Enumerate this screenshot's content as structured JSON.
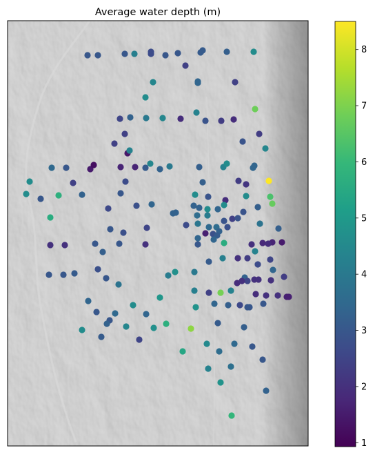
{
  "chart_data": {
    "type": "scatter",
    "title": "Average water depth (m)",
    "xlabel": "",
    "ylabel": "",
    "grid": false,
    "background": "grayscale hillshade relief map",
    "colorbar": {
      "colormap": "viridis",
      "range": [
        0.93,
        8.5
      ],
      "ticks": [
        1,
        2,
        3,
        4,
        5,
        6,
        7,
        8
      ],
      "tick_labels": [
        "1",
        "2",
        "3",
        "4",
        "5",
        "6",
        "7",
        "8"
      ],
      "colors": [
        "#440154",
        "#482878",
        "#3e4989",
        "#31688e",
        "#26828e",
        "#1f9e89",
        "#35b779",
        "#6ece58",
        "#b5de2b",
        "#fde725"
      ]
    },
    "series": [
      {
        "values": [
          [
            127,
            80,
            3.0
          ],
          [
            142,
            80,
            3.0
          ],
          [
            181,
            78,
            3.0
          ],
          [
            195,
            78,
            4.2
          ],
          [
            219,
            75,
            2.7
          ],
          [
            219,
            78,
            2.7
          ],
          [
            240,
            80,
            3.0
          ],
          [
            258,
            77,
            3.0
          ],
          [
            291,
            76,
            3.1
          ],
          [
            294,
            73,
            3.1
          ],
          [
            329,
            75,
            3.2
          ],
          [
            368,
            75,
            4.6
          ],
          [
            269,
            95,
            2.4
          ],
          [
            222,
            119,
            4.4
          ],
          [
            287,
            118,
            3.4
          ],
          [
            287,
            120,
            3.4
          ],
          [
            341,
            119,
            2.4
          ],
          [
            211,
            141,
            4.6
          ],
          [
            370,
            158,
            6.8
          ],
          [
            285,
            163,
            4.3
          ],
          [
            174,
            172,
            2.5
          ],
          [
            189,
            170,
            3.3
          ],
          [
            212,
            171,
            4.0
          ],
          [
            236,
            171,
            4.4
          ],
          [
            262,
            172,
            1.9
          ],
          [
            298,
            175,
            2.9
          ],
          [
            321,
            175,
            2.3
          ],
          [
            339,
            173,
            1.9
          ],
          [
            181,
            194,
            2.4
          ],
          [
            166,
            208,
            2.4
          ],
          [
            185,
            222,
            1.4
          ],
          [
            188,
            218,
            4.3
          ],
          [
            352,
            205,
            2.9
          ],
          [
            376,
            194,
            2.3
          ],
          [
            385,
            215,
            4.4
          ],
          [
            75,
            243,
            3.5
          ],
          [
            96,
            243,
            3.0
          ],
          [
            131,
            245,
            1.5
          ],
          [
            136,
            239,
            1.2
          ],
          [
            175,
            242,
            1.7
          ],
          [
            196,
            242,
            1.7
          ],
          [
            218,
            237,
            4.4
          ],
          [
            232,
            245,
            3.3
          ],
          [
            211,
            243,
            3.1
          ],
          [
            246,
            241,
            4.0
          ],
          [
            289,
            242,
            3.2
          ],
          [
            324,
            242,
            4.3
          ],
          [
            329,
            237,
            4.6
          ],
          [
            367,
            243,
            3.4
          ],
          [
            369,
            240,
            3.4
          ],
          [
            43,
            263,
            4.6
          ],
          [
            106,
            265,
            2.4
          ],
          [
            182,
            263,
            2.7
          ],
          [
            294,
            264,
            3.2
          ],
          [
            346,
            262,
            2.3
          ],
          [
            357,
            267,
            2.1
          ],
          [
            390,
            262,
            8.5
          ],
          [
            38,
            281,
            4.6
          ],
          [
            59,
            288,
            3.0
          ],
          [
            85,
            283,
            5.7
          ],
          [
            119,
            282,
            3.3
          ],
          [
            175,
            280,
            3.0
          ],
          [
            283,
            282,
            4.6
          ],
          [
            302,
            285,
            2.9
          ],
          [
            327,
            290,
            1.9
          ],
          [
            357,
            284,
            4.6
          ],
          [
            392,
            285,
            6.3
          ],
          [
            395,
            295,
            6.7
          ],
          [
            157,
            302,
            2.6
          ],
          [
            198,
            298,
            2.8
          ],
          [
            220,
            296,
            3.4
          ],
          [
            251,
            309,
            3.3
          ],
          [
            255,
            308,
            3.3
          ],
          [
            281,
            298,
            3.3
          ],
          [
            289,
            301,
            3.3
          ],
          [
            301,
            303,
            4.6
          ],
          [
            316,
            303,
            3.4
          ],
          [
            325,
            297,
            4.6
          ],
          [
            353,
            307,
            2.9
          ],
          [
            374,
            300,
            3.2
          ],
          [
            73,
            315,
            5.6
          ],
          [
            301,
            312,
            4.1
          ],
          [
            286,
            312,
            3.6
          ],
          [
            287,
            324,
            3.9
          ],
          [
            325,
            320,
            2.9
          ],
          [
            337,
            317,
            2.4
          ],
          [
            345,
            316,
            2.9
          ],
          [
            377,
            324,
            3.8
          ],
          [
            160,
            332,
            3.0
          ],
          [
            179,
            337,
            2.8
          ],
          [
            213,
            330,
            2.5
          ],
          [
            270,
            326,
            2.7
          ],
          [
            298,
            338,
            1.6
          ],
          [
            303,
            329,
            3.5
          ],
          [
            314,
            329,
            3.6
          ],
          [
            318,
            335,
            3.3
          ],
          [
            330,
            329,
            2.8
          ],
          [
            309,
            339,
            2.8
          ],
          [
            315,
            341,
            3.1
          ],
          [
            404,
            331,
            3.2
          ],
          [
            73,
            355,
            2.0
          ],
          [
            94,
            355,
            2.0
          ],
          [
            138,
            353,
            3.0
          ],
          [
            173,
            353,
            3.0
          ],
          [
            211,
            354,
            2.0
          ],
          [
            287,
            345,
            3.4
          ],
          [
            287,
            354,
            3.0
          ],
          [
            325,
            352,
            5.6
          ],
          [
            310,
            347,
            3.4
          ],
          [
            365,
            354,
            2.0
          ],
          [
            381,
            352,
            1.8
          ],
          [
            395,
            351,
            1.7
          ],
          [
            409,
            351,
            1.5
          ],
          [
            389,
            353,
            1.9
          ],
          [
            149,
            365,
            3.2
          ],
          [
            303,
            379,
            3.1
          ],
          [
            323,
            374,
            4.2
          ],
          [
            345,
            374,
            2.0
          ],
          [
            359,
            374,
            2.3
          ],
          [
            370,
            364,
            4.3
          ],
          [
            374,
            383,
            2.7
          ],
          [
            392,
            376,
            2.5
          ],
          [
            244,
            399,
            4.1
          ],
          [
            142,
            390,
            2.8
          ],
          [
            254,
            394,
            4.7
          ],
          [
            71,
            398,
            3.0
          ],
          [
            92,
            398,
            3.0
          ],
          [
            108,
            396,
            3.1
          ],
          [
            154,
            403,
            3.0
          ],
          [
            172,
            412,
            3.8
          ],
          [
            282,
            394,
            4.0
          ],
          [
            355,
            402,
            3.3
          ],
          [
            359,
            407,
            2.5
          ],
          [
            369,
            405,
            2.0
          ],
          [
            375,
            405,
            2.0
          ],
          [
            393,
            406,
            2.0
          ],
          [
            412,
            401,
            2.3
          ],
          [
            344,
            410,
            1.9
          ],
          [
            351,
            407,
            2.0
          ],
          [
            396,
            391,
            3.4
          ],
          [
            232,
            431,
            4.9
          ],
          [
            282,
            421,
            4.2
          ],
          [
            303,
            424,
            2.4
          ],
          [
            320,
            424,
            6.9
          ],
          [
            335,
            421,
            4.3
          ],
          [
            371,
            426,
            1.9
          ],
          [
            386,
            428,
            2.0
          ],
          [
            403,
            428,
            2.0
          ],
          [
            416,
            430,
            1.6
          ],
          [
            419,
            430,
            1.6
          ],
          [
            128,
            436,
            3.4
          ],
          [
            193,
            442,
            4.6
          ],
          [
            284,
            445,
            4.8
          ],
          [
            311,
            440,
            3.4
          ],
          [
            331,
            442,
            3.2
          ],
          [
            348,
            442,
            2.6
          ],
          [
            359,
            445,
            3.0
          ],
          [
            362,
            445,
            3.0
          ],
          [
            382,
            440,
            3.0
          ],
          [
            140,
            452,
            3.0
          ],
          [
            167,
            454,
            3.5
          ],
          [
            159,
            464,
            3.0
          ],
          [
            212,
            455,
            3.4
          ],
          [
            241,
            469,
            5.7
          ],
          [
            223,
            475,
            4.7
          ],
          [
            277,
            476,
            7.2
          ],
          [
            183,
            473,
            4.4
          ],
          [
            316,
            468,
            3.1
          ],
          [
            354,
            474,
            3.2
          ],
          [
            155,
            469,
            3.3
          ],
          [
            119,
            478,
            4.6
          ],
          [
            147,
            488,
            3.1
          ],
          [
            202,
            492,
            2.5
          ],
          [
            300,
            498,
            4.5
          ],
          [
            340,
            498,
            3.5
          ],
          [
            366,
            502,
            3.0
          ],
          [
            265,
            509,
            5.4
          ],
          [
            318,
            509,
            3.6
          ],
          [
            381,
            521,
            3.0
          ],
          [
            302,
            534,
            4.3
          ],
          [
            335,
            531,
            3.7
          ],
          [
            320,
            554,
            4.8
          ],
          [
            386,
            566,
            3.3
          ],
          [
            336,
            602,
            5.9
          ]
        ]
      }
    ]
  }
}
